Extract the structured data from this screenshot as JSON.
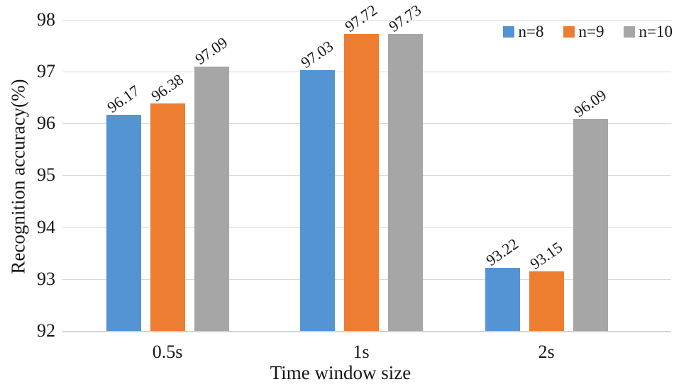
{
  "chart_data": {
    "type": "bar",
    "title": "",
    "xlabel": "Time window size",
    "ylabel": "Recognition accuracy(%)",
    "categories": [
      "0.5s",
      "1s",
      "2s"
    ],
    "series": [
      {
        "name": "n=8",
        "color": "#5494d2",
        "values": [
          96.17,
          97.03,
          93.22
        ]
      },
      {
        "name": "n=9",
        "color": "#ed7d31",
        "values": [
          96.38,
          97.72,
          93.15
        ]
      },
      {
        "name": "n=10",
        "color": "#a6a6a6",
        "values": [
          97.09,
          97.73,
          96.09
        ]
      }
    ],
    "ylim": [
      92,
      98
    ],
    "yticks": [
      92,
      93,
      94,
      95,
      96,
      97,
      98
    ],
    "grid": "horizontal",
    "legend_position": "top-right",
    "data_labels": "outside-end-rotated",
    "colors": {
      "gridline": "#d9d9d9",
      "axis_line": "#d2d2d2",
      "text": "#161616"
    }
  }
}
